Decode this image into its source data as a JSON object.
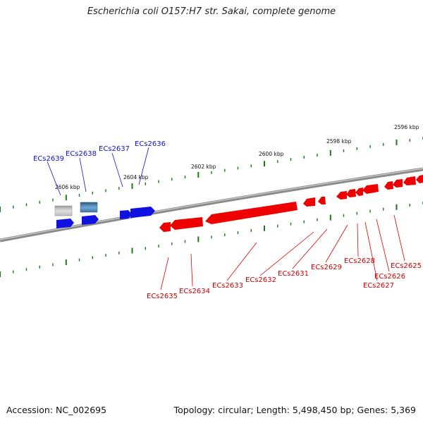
{
  "title": "Escherichia coli O157:H7 str. Sakai, complete genome",
  "footer": {
    "accession": "Accession: NC_002695",
    "topology": "Topology: circular; Length: 5,498,450 bp; Genes: 5,369"
  },
  "colors": {
    "forward": "#1010e0",
    "reverse": "#ee0000",
    "tick": "#1a7a1a",
    "backbone": "#808080"
  },
  "scale_labels": [
    "2606 kbp",
    "2604 kbp",
    "2602 kbp",
    "2600 kbp",
    "2598 kbp",
    "2596 kbp"
  ],
  "genes": [
    {
      "id": "ECs2639",
      "strand": "+"
    },
    {
      "id": "ECs2638",
      "strand": "+"
    },
    {
      "id": "ECs2637",
      "strand": "+"
    },
    {
      "id": "ECs2636",
      "strand": "+"
    },
    {
      "id": "ECs2635",
      "strand": "-"
    },
    {
      "id": "ECs2634",
      "strand": "-"
    },
    {
      "id": "ECs2633",
      "strand": "-"
    },
    {
      "id": "ECs2632",
      "strand": "-"
    },
    {
      "id": "ECs2631",
      "strand": "-"
    },
    {
      "id": "ECs2629",
      "strand": "-"
    },
    {
      "id": "ECs2628",
      "strand": "-"
    },
    {
      "id": "ECs2627",
      "strand": "-"
    },
    {
      "id": "ECs2626",
      "strand": "-"
    },
    {
      "id": "ECs2625",
      "strand": "-"
    }
  ]
}
